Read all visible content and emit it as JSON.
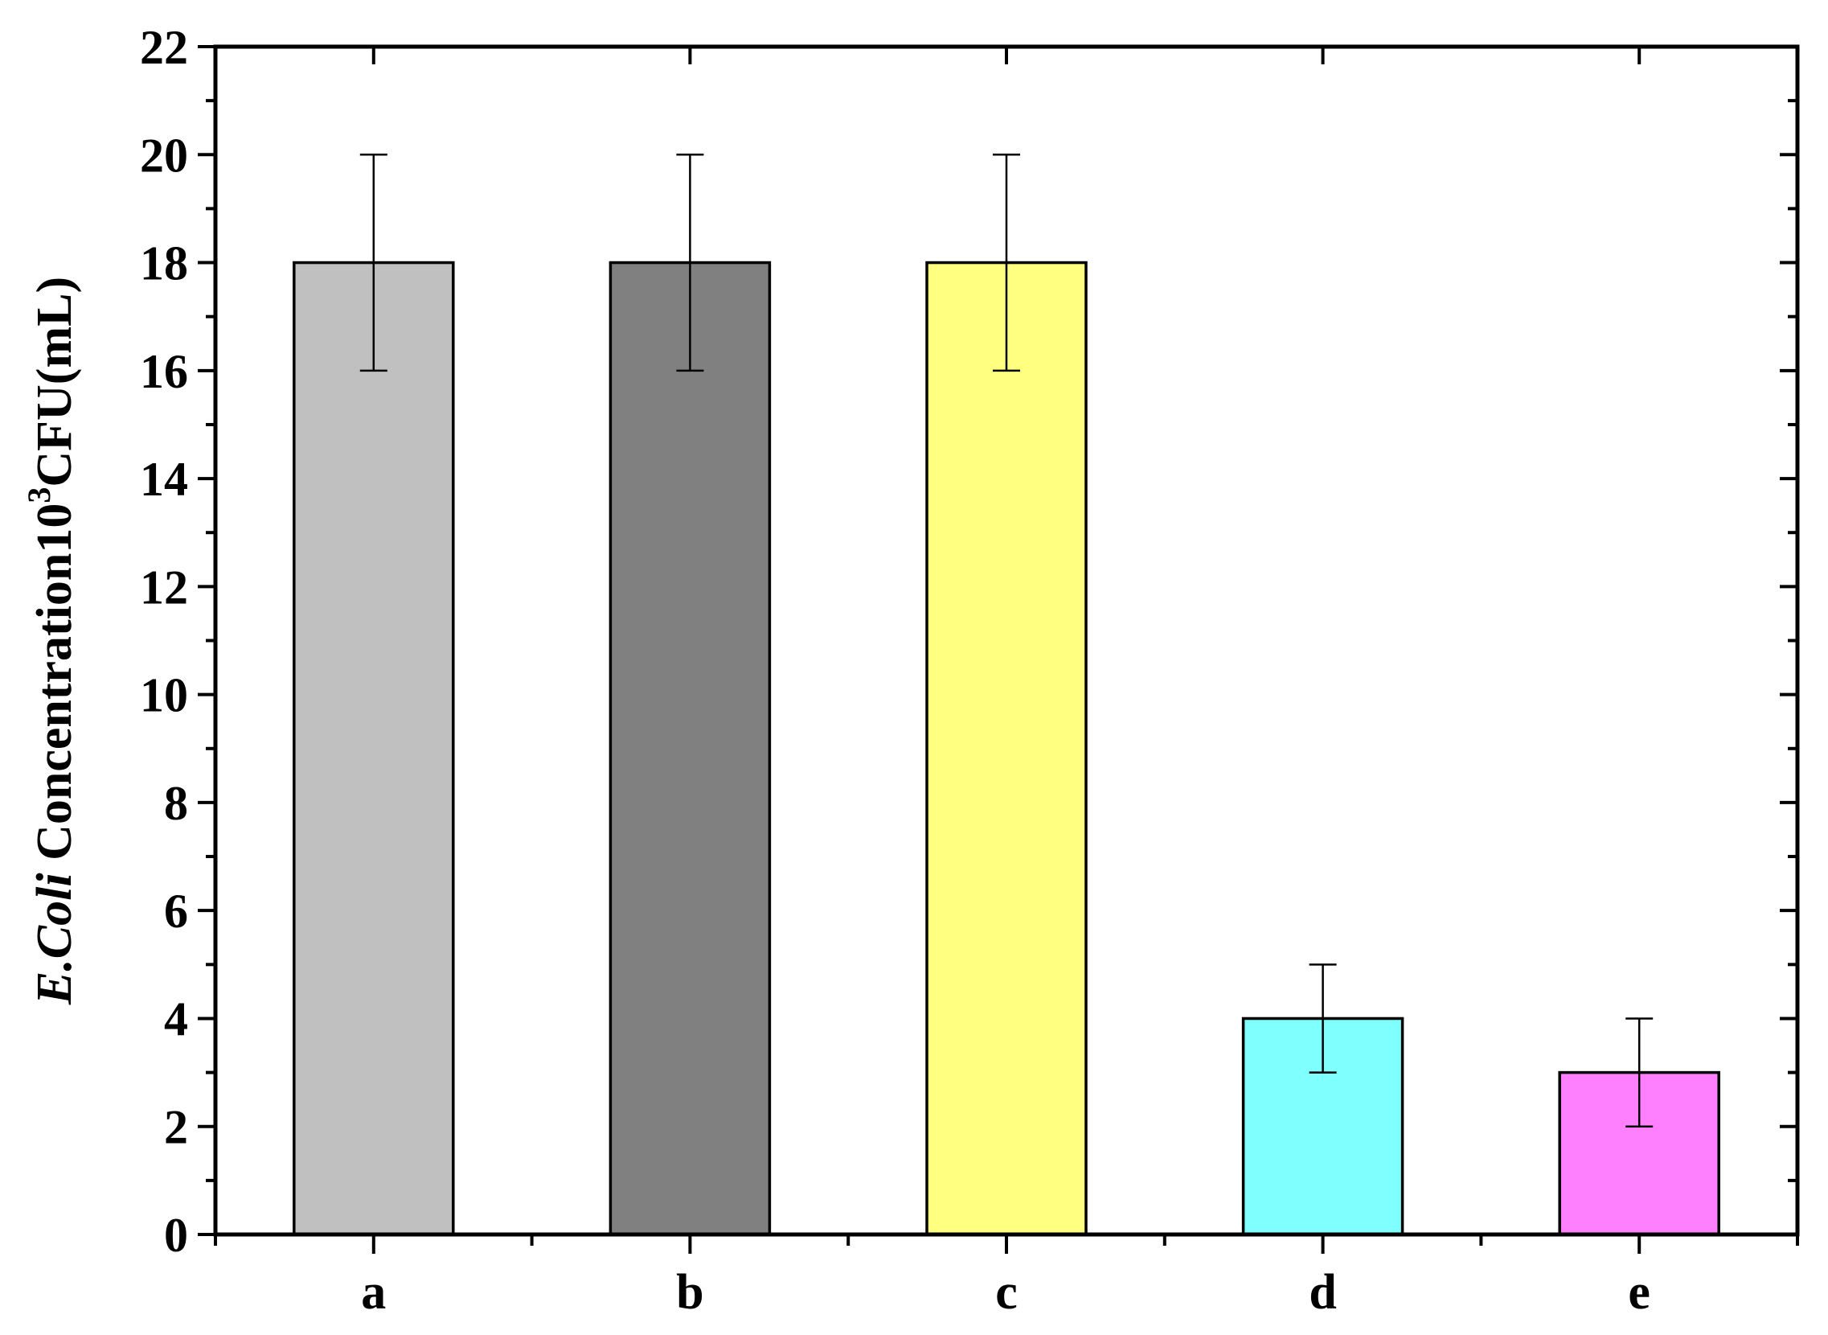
{
  "chart_data": {
    "type": "bar",
    "categories": [
      "a",
      "b",
      "c",
      "d",
      "e"
    ],
    "values": [
      18,
      18,
      18,
      4,
      3
    ],
    "errors": [
      2,
      2,
      2,
      1,
      1
    ],
    "colors": [
      "#C0C0C0",
      "#808080",
      "#FFFF80",
      "#80FFFF",
      "#FF80FF"
    ],
    "title": "",
    "xlabel": "",
    "ylabel": {
      "italic": "E.Coli",
      "main": " Concentration10",
      "sup": "3",
      "unit": "CFU(mL)"
    },
    "ylim": [
      0,
      22
    ],
    "yticks": [
      0,
      2,
      4,
      6,
      8,
      10,
      12,
      14,
      16,
      18,
      20,
      22
    ],
    "grid": false,
    "legend": "none"
  }
}
